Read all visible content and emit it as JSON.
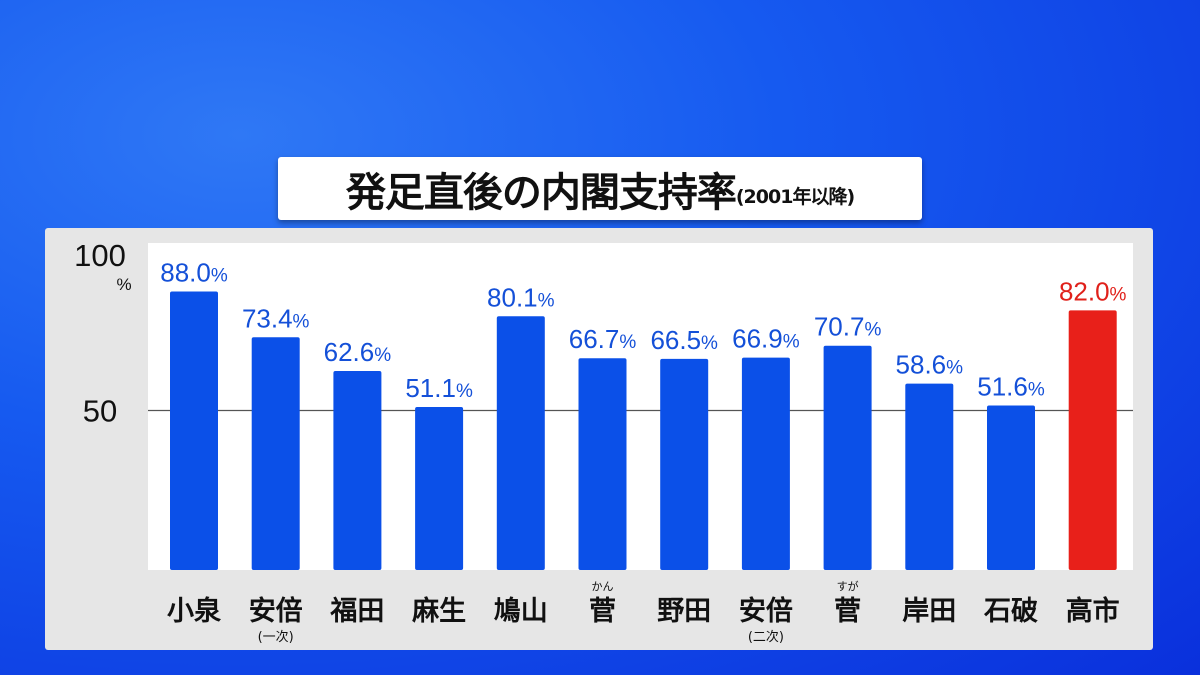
{
  "chart_data": {
    "type": "bar",
    "title": "発足直後の内閣支持率",
    "subtitle": "(2001年以降)",
    "categories": [
      "小泉",
      "安倍",
      "福田",
      "麻生",
      "鳩山",
      "菅",
      "野田",
      "安倍",
      "菅",
      "岸田",
      "石破",
      "高市"
    ],
    "category_notes": [
      "",
      "(一次)",
      "",
      "",
      "",
      "",
      "",
      "(二次)",
      "",
      "",
      "",
      ""
    ],
    "category_ruby": [
      "",
      "",
      "",
      "",
      "",
      "かん",
      "",
      "",
      "すが",
      "",
      "",
      ""
    ],
    "values": [
      88.0,
      73.4,
      62.6,
      51.1,
      80.1,
      66.7,
      66.5,
      66.9,
      70.7,
      58.6,
      51.6,
      82.0
    ],
    "value_labels": [
      "88.0%",
      "73.4%",
      "62.6%",
      "51.1%",
      "80.1%",
      "66.7%",
      "66.5%",
      "66.9%",
      "70.7%",
      "58.6%",
      "51.6%",
      "82.0%"
    ],
    "ylim": [
      0,
      100
    ],
    "yticks": [
      "100",
      "50"
    ],
    "yunit": "%",
    "gridlines": [
      50
    ],
    "colors": {
      "bar": "#0b50e8",
      "highlight": "#e8201a",
      "label": "#1450d8",
      "highlight_label": "#e0201a"
    },
    "highlight_index": 11
  }
}
